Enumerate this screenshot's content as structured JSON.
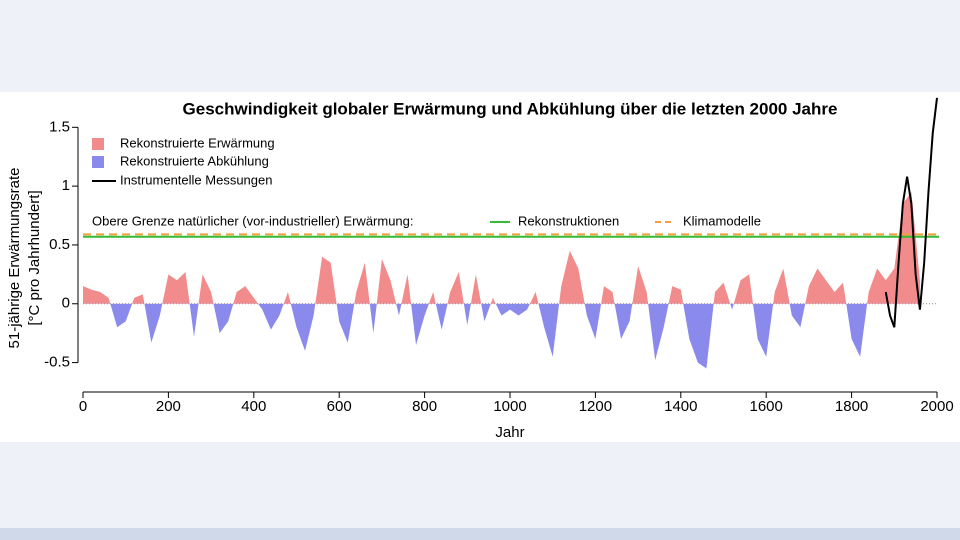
{
  "chart_data": {
    "type": "area-line",
    "title": "Geschwindigkeit globaler Erwärmung und Abkühlung über die letzten 2000 Jahre",
    "y_label": [
      "51-jährige Erwärmungsrate",
      "[°C pro Jahrhundert]"
    ],
    "x_label": "Jahr",
    "xlim": [
      0,
      2000
    ],
    "ylim": [
      -0.75,
      1.8
    ],
    "xticks": [
      0,
      200,
      400,
      600,
      800,
      1000,
      1200,
      1400,
      1600,
      1800,
      2000
    ],
    "yticks": [
      -0.5,
      0,
      0.5,
      1,
      1.5
    ],
    "reconstruction": {
      "positive_name": "Rekonstruierte Erwärmung",
      "positive_color": "#f28b8b",
      "negative_name": "Rekonstruierte Abkühlung",
      "negative_color": "#8a8aec",
      "x": [
        0,
        20,
        40,
        60,
        80,
        100,
        120,
        140,
        160,
        180,
        200,
        220,
        240,
        260,
        280,
        300,
        320,
        340,
        360,
        380,
        400,
        420,
        440,
        460,
        480,
        500,
        520,
        540,
        560,
        580,
        600,
        620,
        640,
        660,
        680,
        700,
        720,
        740,
        760,
        780,
        800,
        820,
        840,
        860,
        880,
        900,
        920,
        940,
        960,
        980,
        1000,
        1020,
        1040,
        1060,
        1080,
        1100,
        1120,
        1140,
        1160,
        1180,
        1200,
        1220,
        1240,
        1260,
        1280,
        1300,
        1320,
        1340,
        1360,
        1380,
        1400,
        1420,
        1440,
        1460,
        1480,
        1500,
        1520,
        1540,
        1560,
        1580,
        1600,
        1620,
        1640,
        1660,
        1680,
        1700,
        1720,
        1740,
        1760,
        1780,
        1800,
        1820,
        1840,
        1860,
        1880,
        1900,
        1920,
        1940,
        1960
      ],
      "values": [
        0.15,
        0.12,
        0.1,
        0.05,
        -0.2,
        -0.15,
        0.05,
        0.08,
        -0.33,
        -0.1,
        0.25,
        0.2,
        0.27,
        -0.28,
        0.25,
        0.1,
        -0.25,
        -0.15,
        0.1,
        0.15,
        0.05,
        -0.05,
        -0.22,
        -0.1,
        0.1,
        -0.2,
        -0.4,
        -0.1,
        0.4,
        0.35,
        -0.15,
        -0.33,
        0.1,
        0.35,
        -0.25,
        0.38,
        0.2,
        -0.1,
        0.25,
        -0.35,
        -0.1,
        0.1,
        -0.22,
        0.1,
        0.27,
        -0.18,
        0.25,
        -0.15,
        0.05,
        -0.1,
        -0.05,
        -0.1,
        -0.05,
        0.1,
        -0.2,
        -0.45,
        0.15,
        0.45,
        0.3,
        -0.1,
        -0.3,
        0.15,
        0.1,
        -0.3,
        -0.15,
        0.32,
        0.1,
        -0.48,
        -0.2,
        0.15,
        0.12,
        -0.3,
        -0.5,
        -0.55,
        0.1,
        0.18,
        -0.05,
        0.2,
        0.25,
        -0.3,
        -0.45,
        0.1,
        0.3,
        -0.1,
        -0.2,
        0.15,
        0.3,
        0.2,
        0.1,
        0.18,
        -0.3,
        -0.45,
        0.1,
        0.3,
        0.2,
        0.3,
        0.85,
        0.95,
        0.2
      ]
    },
    "instrumental": {
      "name": "Instrumentelle Messungen",
      "color": "#000000",
      "x": [
        1880,
        1890,
        1900,
        1910,
        1920,
        1930,
        1940,
        1950,
        1960,
        1970,
        1980,
        1990,
        2000
      ],
      "values": [
        0.1,
        -0.1,
        -0.2,
        0.35,
        0.85,
        1.08,
        0.85,
        0.25,
        -0.05,
        0.35,
        0.95,
        1.45,
        1.75
      ]
    },
    "limits_label": "Obere Grenze natürlicher (vor-industrieller) Erwärmung:",
    "limits": [
      {
        "name": "Rekonstruktionen",
        "color": "#33bb33",
        "value": 0.57,
        "dashed": false
      },
      {
        "name": "Klimamodelle",
        "color": "#f0a040",
        "value": 0.59,
        "dashed": true
      }
    ]
  }
}
